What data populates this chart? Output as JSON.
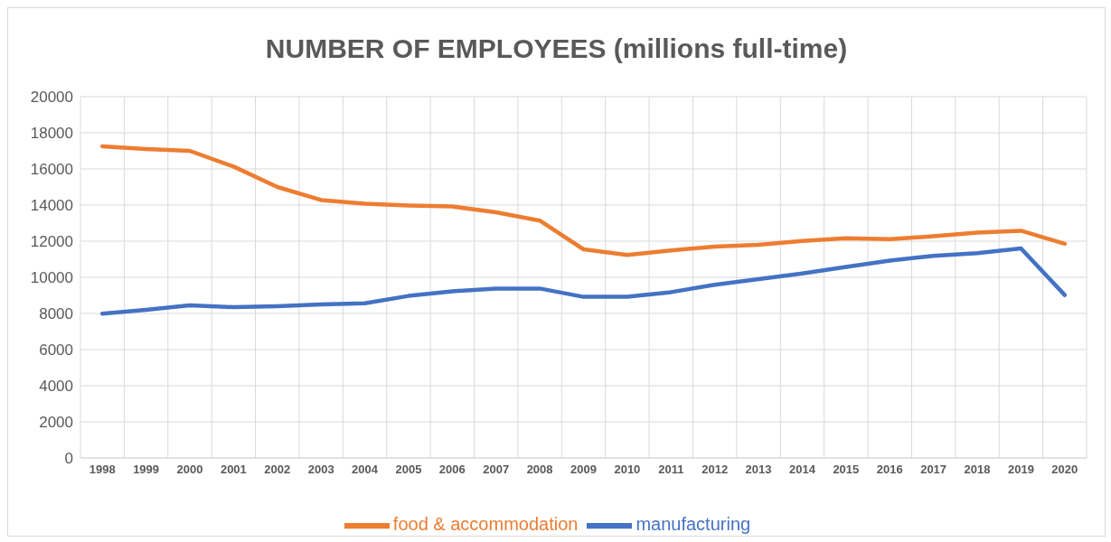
{
  "chart_data": {
    "type": "line",
    "title": "NUMBER OF EMPLOYEES (millions full-time)",
    "categories": [
      "1998",
      "1999",
      "2000",
      "2001",
      "2002",
      "2003",
      "2004",
      "2005",
      "2006",
      "2007",
      "2008",
      "2009",
      "2010",
      "2011",
      "2012",
      "2013",
      "2014",
      "2015",
      "2016",
      "2017",
      "2018",
      "2019",
      "2020"
    ],
    "series": [
      {
        "name": "manufacturing",
        "color": "#4472c4",
        "values": [
          7990,
          8200,
          8450,
          8350,
          8400,
          8500,
          8560,
          8970,
          9230,
          9380,
          9380,
          8920,
          8920,
          9180,
          9590,
          9900,
          10210,
          10570,
          10930,
          11190,
          11340,
          11600,
          9020
        ]
      },
      {
        "name": "food & accommodation",
        "color": "#ed7d31",
        "values": [
          17250,
          17100,
          17000,
          16130,
          15000,
          14280,
          14070,
          13970,
          13920,
          13600,
          13140,
          11550,
          11240,
          11490,
          11700,
          11800,
          12010,
          12160,
          12110,
          12270,
          12470,
          12580,
          11860
        ]
      }
    ],
    "ylim": [
      0,
      20000
    ],
    "yticks": [
      0,
      2000,
      4000,
      6000,
      8000,
      10000,
      12000,
      14000,
      16000,
      18000,
      20000
    ],
    "grid": true,
    "legend": "bottom",
    "marker": "none",
    "line_style": "solid"
  }
}
